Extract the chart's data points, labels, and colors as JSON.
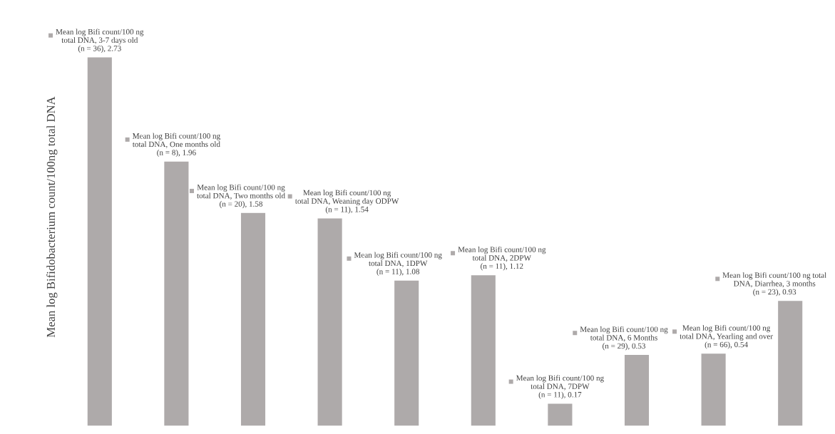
{
  "chart_data": {
    "type": "bar",
    "ylabel": "Mean log Bifidobacterium count/100ng total DNA",
    "categories": [
      null,
      null,
      null,
      null,
      null,
      null,
      null,
      null,
      null,
      null
    ],
    "series": [
      {
        "color": "#aeaaaa",
        "values": [
          2.73,
          1.96,
          1.58,
          1.54,
          1.08,
          1.12,
          0.17,
          0.53,
          0.54,
          0.93
        ],
        "value_labels": [
          "Mean log Bifi count/100 ng\ntotal DNA, 3-7 days old\n(n = 36), 2.73",
          "Mean log Bifi count/100 ng\ntotal DNA, One months old\n(n = 8), 1.96",
          "Mean log Bifi count/100 ng\ntotal DNA, Two months old\n(n = 20), 1.58",
          "Mean log Bifi count/100 ng\ntotal DNA, Weaning day ODPW\n(n = 11), 1.54",
          "Mean log Bifi count/100 ng\ntotal DNA, 1DPW\n(n = 11), 1.08",
          "Mean log Bifi count/100 ng\ntotal DNA, 2DPW\n(n = 11), 1.12",
          "Mean log Bifi count/100 ng\ntotal DNA, 7DPW\n(n = 11), 0.17",
          "Mean log Bifi count/100 ng\ntotal DNA, 6 Months\n(n = 29), 0.53",
          "Mean log Bifi count/100 ng\ntotal DNA, Yearling and over\n(n = 66), 0.54",
          "Mean log Bifi count/100 ng total\nDNA, Diarrhea, 3 months\n(n = 23), 0.93"
        ]
      }
    ],
    "tick_labels": false
  }
}
